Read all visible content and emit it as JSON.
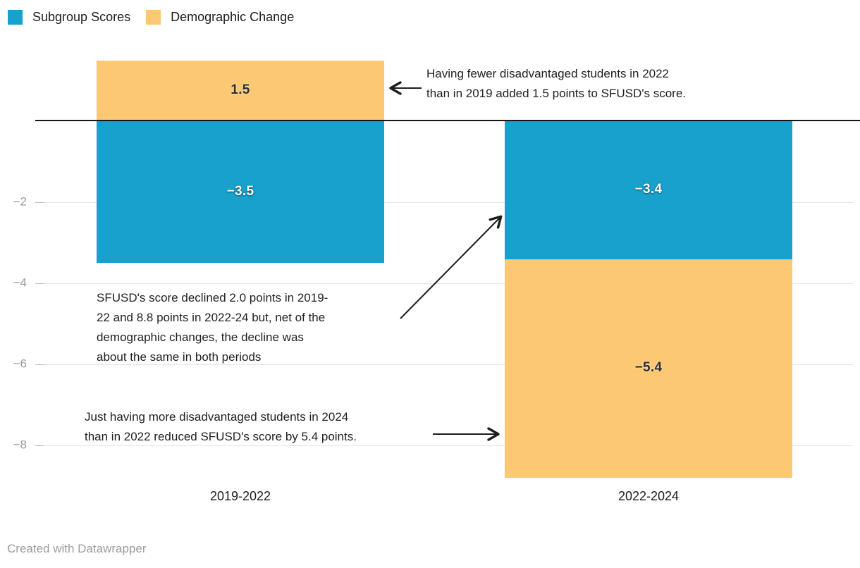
{
  "legend": {
    "items": [
      {
        "label": "Subgroup Scores",
        "color": "#18a1cd"
      },
      {
        "label": "Demographic Change",
        "color": "#fcc873"
      }
    ]
  },
  "chart_data": {
    "type": "bar",
    "stacked": true,
    "orientation": "vertical",
    "categories": [
      "2019-2022",
      "2022-2024"
    ],
    "series": [
      {
        "name": "Subgroup Scores",
        "color": "#18a1cd",
        "values": [
          -3.5,
          -3.4
        ]
      },
      {
        "name": "Demographic Change",
        "color": "#fcc873",
        "values": [
          1.5,
          -5.4
        ]
      }
    ],
    "bars": [
      {
        "category": "2019-2022",
        "segments": [
          {
            "series": "Demographic Change",
            "value": 1.5,
            "label": "1.5"
          },
          {
            "series": "Subgroup Scores",
            "value": -3.5,
            "label": "−3.5"
          }
        ]
      },
      {
        "category": "2022-2024",
        "segments": [
          {
            "series": "Subgroup Scores",
            "value": -3.4,
            "label": "−3.4"
          },
          {
            "series": "Demographic Change",
            "value": -5.4,
            "label": "−5.4"
          }
        ]
      }
    ],
    "yticks": [
      {
        "value": -2,
        "label": "−2"
      },
      {
        "value": -4,
        "label": "−4"
      },
      {
        "value": -6,
        "label": "−6"
      },
      {
        "value": -8,
        "label": "−8"
      }
    ],
    "ylim": [
      -8.8,
      1.5
    ],
    "grid": "horizontal",
    "zero_line": true,
    "legend_position": "top-left"
  },
  "annotations": [
    {
      "id": "added-points",
      "lines": [
        "Having fewer disadvantaged students in 2022",
        "than in 2019 added 1.5 points to SFUSD's score."
      ]
    },
    {
      "id": "net-decline",
      "lines": [
        "SFUSD's score declined 2.0 points in 2019-",
        "22 and 8.8 points in 2022-24 but, net of the",
        "demographic changes, the decline was",
        "about the same in both periods"
      ]
    },
    {
      "id": "reduced-points",
      "lines": [
        "Just having more disadvantaged students in 2024",
        "than in 2022 reduced SFUSD's score by 5.4 points."
      ]
    }
  ],
  "footer": {
    "credit": "Created with Datawrapper"
  },
  "colors": {
    "subgroup_scores": "#18a1cd",
    "demographic_change": "#fcc873",
    "zero_line": "#161616",
    "gridline": "#e4e4e4",
    "axis_text": "#9a9a9a",
    "annotation_text": "#1f1f1f"
  }
}
